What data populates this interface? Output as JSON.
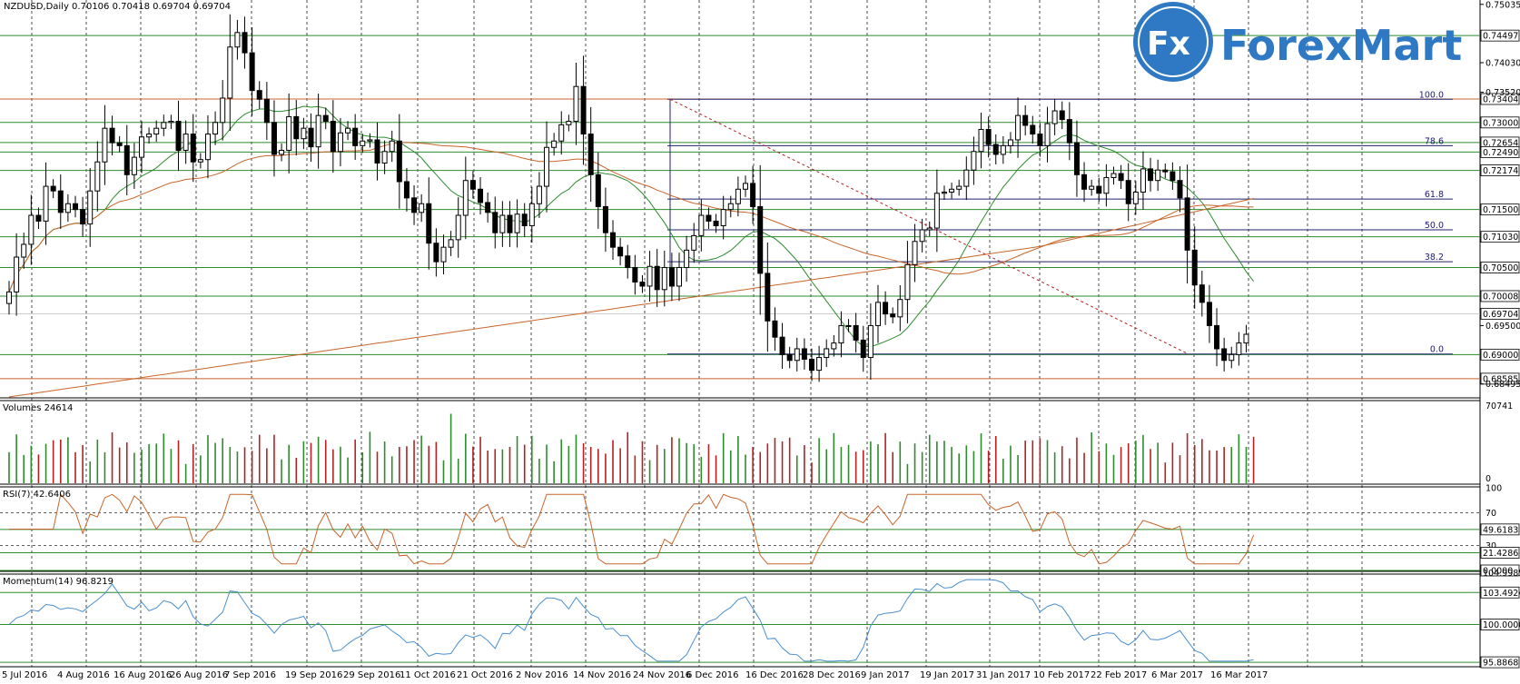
{
  "logo": {
    "mark": "Fx",
    "name": "ForexMart"
  },
  "headers": {
    "main": "NZDUSD,Daily  0.70106 0.70418 0.69704 0.69704",
    "volume": "Volumes 24614",
    "rsi": "RSI(7) 42.6406",
    "momentum": "Momentum(14) 96.8219"
  },
  "colors": {
    "up": "#000000",
    "down": "#000000",
    "support": "#2e8b2e",
    "fib": "#23236e",
    "sma_short": "#2e8b2e",
    "sma_long": "#c8652b",
    "volume_up": "#2e8b2e",
    "volume_down": "#b22222",
    "rsi": "#c8652b",
    "momentum": "#4a8fd0"
  },
  "chart_data": [
    {
      "type": "candlestick",
      "title": "NZDUSD,Daily",
      "ylim": [
        0.6827,
        0.7511
      ],
      "x_dates": [
        "5 Jul 2016",
        "4 Aug 2016",
        "16 Aug 2016",
        "26 Aug 2016",
        "7 Sep 2016",
        "19 Sep 2016",
        "29 Sep 2016",
        "11 Oct 2016",
        "21 Oct 2016",
        "2 Nov 2016",
        "14 Nov 2016",
        "24 Nov 2016",
        "6 Dec 2016",
        "16 Dec 2016",
        "28 Dec 2016",
        "9 Jan 2017",
        "19 Jan 2017",
        "31 Jan 2017",
        "10 Feb 2017",
        "22 Feb 2017",
        "6 Mar 2017",
        "16 Mar 2017"
      ],
      "y_tick_labels": [
        "0.75035",
        "0.74030",
        "0.73520",
        "0.69500",
        "0.68495"
      ],
      "horizontal_levels": [
        "0.74497",
        "0.73404",
        "0.73000",
        "0.72654",
        "0.72490",
        "0.72174",
        "0.71500",
        "0.71030",
        "0.70500",
        "0.70008",
        "0.69000",
        "0.68585"
      ],
      "current_price": "0.69704",
      "last_candle": {
        "open": 0.70106,
        "high": 0.70418,
        "low": 0.69704,
        "close": 0.69704
      },
      "fibonacci": [
        {
          "level": "100.0",
          "price": 0.734
        },
        {
          "level": "78.6",
          "price": 0.726
        },
        {
          "level": "61.8",
          "price": 0.7168
        },
        {
          "level": "50.0",
          "price": 0.7115
        },
        {
          "level": "38.2",
          "price": 0.706
        },
        {
          "level": "0.0",
          "price": 0.6901
        }
      ],
      "closes": [
        0.7008,
        0.7068,
        0.709,
        0.714,
        0.713,
        0.719,
        0.7182,
        0.7145,
        0.716,
        0.715,
        0.7125,
        0.7182,
        0.7232,
        0.729,
        0.7265,
        0.726,
        0.721,
        0.724,
        0.7275,
        0.728,
        0.729,
        0.73,
        0.7302,
        0.7252,
        0.728,
        0.7232,
        0.7236,
        0.728,
        0.73,
        0.7342,
        0.743,
        0.7455,
        0.742,
        0.7355,
        0.734,
        0.73,
        0.7245,
        0.7252,
        0.731,
        0.7272,
        0.729,
        0.7258,
        0.7312,
        0.7302,
        0.725,
        0.7282,
        0.729,
        0.726,
        0.7268,
        0.727,
        0.723,
        0.725,
        0.7268,
        0.7198,
        0.717,
        0.7145,
        0.716,
        0.7092,
        0.706,
        0.7085,
        0.7098,
        0.714,
        0.72,
        0.7185,
        0.7162,
        0.7145,
        0.711,
        0.714,
        0.711,
        0.7142,
        0.7122,
        0.716,
        0.719,
        0.7257,
        0.7268,
        0.7296,
        0.7302,
        0.7362,
        0.728,
        0.721,
        0.7155,
        0.711,
        0.7085,
        0.707,
        0.705,
        0.7025,
        0.7018,
        0.7052,
        0.7012,
        0.705,
        0.7018,
        0.705,
        0.708,
        0.7105,
        0.714,
        0.713,
        0.7122,
        0.715,
        0.716,
        0.7185,
        0.7195,
        0.7155,
        0.704,
        0.6958,
        0.693,
        0.69,
        0.689,
        0.691,
        0.6892,
        0.6873,
        0.6895,
        0.691,
        0.692,
        0.695,
        0.695,
        0.6925,
        0.6895,
        0.695,
        0.699,
        0.697,
        0.6965,
        0.6995,
        0.7055,
        0.7095,
        0.7115,
        0.7118,
        0.7178,
        0.718,
        0.7185,
        0.719,
        0.7218,
        0.725,
        0.7288,
        0.7262,
        0.7245,
        0.726,
        0.727,
        0.7312,
        0.7295,
        0.728,
        0.726,
        0.7298,
        0.732,
        0.7305,
        0.7265,
        0.721,
        0.7185,
        0.719,
        0.7178,
        0.7205,
        0.7212,
        0.72,
        0.716,
        0.718,
        0.722,
        0.72,
        0.7218,
        0.7215,
        0.72,
        0.717,
        0.708,
        0.702,
        0.699,
        0.695,
        0.691,
        0.689,
        0.69,
        0.692,
        0.6935,
        0.697
      ]
    },
    {
      "type": "bar",
      "title": "Volumes",
      "y_tick_labels": [
        "70741",
        "0"
      ],
      "value_label": "24614"
    },
    {
      "type": "line",
      "title": "RSI(7)",
      "value_label": "42.6406",
      "y_tick_labels": [
        "100",
        "70",
        "30",
        "0"
      ],
      "horizontal_levels": [
        "49.6183",
        "21.4286",
        "0.0000"
      ]
    },
    {
      "type": "line",
      "title": "Momentum(14)",
      "value_label": "96.8219",
      "y_tick_labels": [
        "104.9985",
        "103.4924",
        "100.0000",
        "95.8868"
      ]
    }
  ]
}
